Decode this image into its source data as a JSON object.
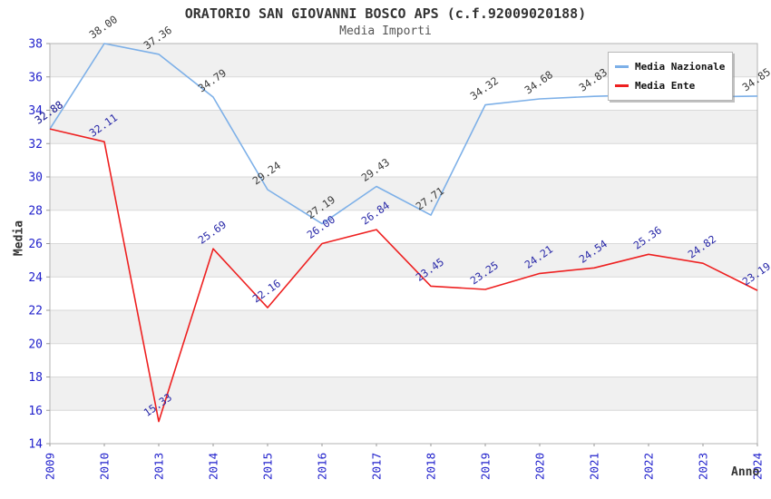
{
  "header": {
    "title": "ORATORIO SAN GIOVANNI BOSCO APS (c.f.92009020188)",
    "subtitle": "Media Importi"
  },
  "axes": {
    "y_title": "Media",
    "x_title": "Anno",
    "y_ticks": [
      38,
      36,
      34,
      32,
      30,
      28,
      26,
      24,
      22,
      20,
      18,
      16,
      14
    ],
    "tick_color": "#2121cc"
  },
  "legend": {
    "items": [
      {
        "label": "Media Nazionale",
        "color": "#7db0e8"
      },
      {
        "label": "Media Ente",
        "color": "#ee2020"
      }
    ]
  },
  "colors": {
    "band": "#f0f0f0",
    "grid": "#d9d9d9",
    "plot_border": "#b3b3b3",
    "title": "#333333",
    "subtitle": "#555555"
  },
  "chart_data": {
    "type": "line",
    "title": "ORATORIO SAN GIOVANNI BOSCO APS (c.f.92009020188)",
    "subtitle": "Media Importi",
    "xlabel": "Anno",
    "ylabel": "Media",
    "ylim": [
      14,
      38
    ],
    "grid": "horizontal alternating gray bands every 2 units",
    "legend_position": "top-right",
    "categories": [
      "2009",
      "2010",
      "2013",
      "2014",
      "2015",
      "2016",
      "2017",
      "2018",
      "2019",
      "2020",
      "2021",
      "2022",
      "2023",
      "2024"
    ],
    "series": [
      {
        "name": "Media Nazionale",
        "color": "#7db0e8",
        "label_color": "#3a3a3a",
        "values": [
          32.88,
          38.0,
          37.36,
          34.79,
          29.24,
          27.19,
          29.43,
          27.71,
          34.32,
          34.68,
          34.83,
          34.93,
          34.8,
          34.85
        ],
        "labels": [
          "32.88",
          "38.00",
          "37.36",
          "34.79",
          "29.24",
          "27.19",
          "29.43",
          "27.71",
          "34.32",
          "34.68",
          "34.83",
          "",
          "",
          "34.85"
        ]
      },
      {
        "name": "Media Ente",
        "color": "#ee2020",
        "label_color": "#2828a8",
        "values": [
          32.88,
          32.11,
          15.33,
          25.69,
          22.16,
          26.0,
          26.84,
          23.45,
          23.25,
          24.21,
          24.54,
          25.36,
          24.82,
          23.19
        ],
        "labels": [
          "32.88",
          "32.11",
          "15.33",
          "25.69",
          "22.16",
          "26.00",
          "26.84",
          "23.45",
          "23.25",
          "24.21",
          "24.54",
          "25.36",
          "24.82",
          "23.19"
        ]
      }
    ]
  }
}
